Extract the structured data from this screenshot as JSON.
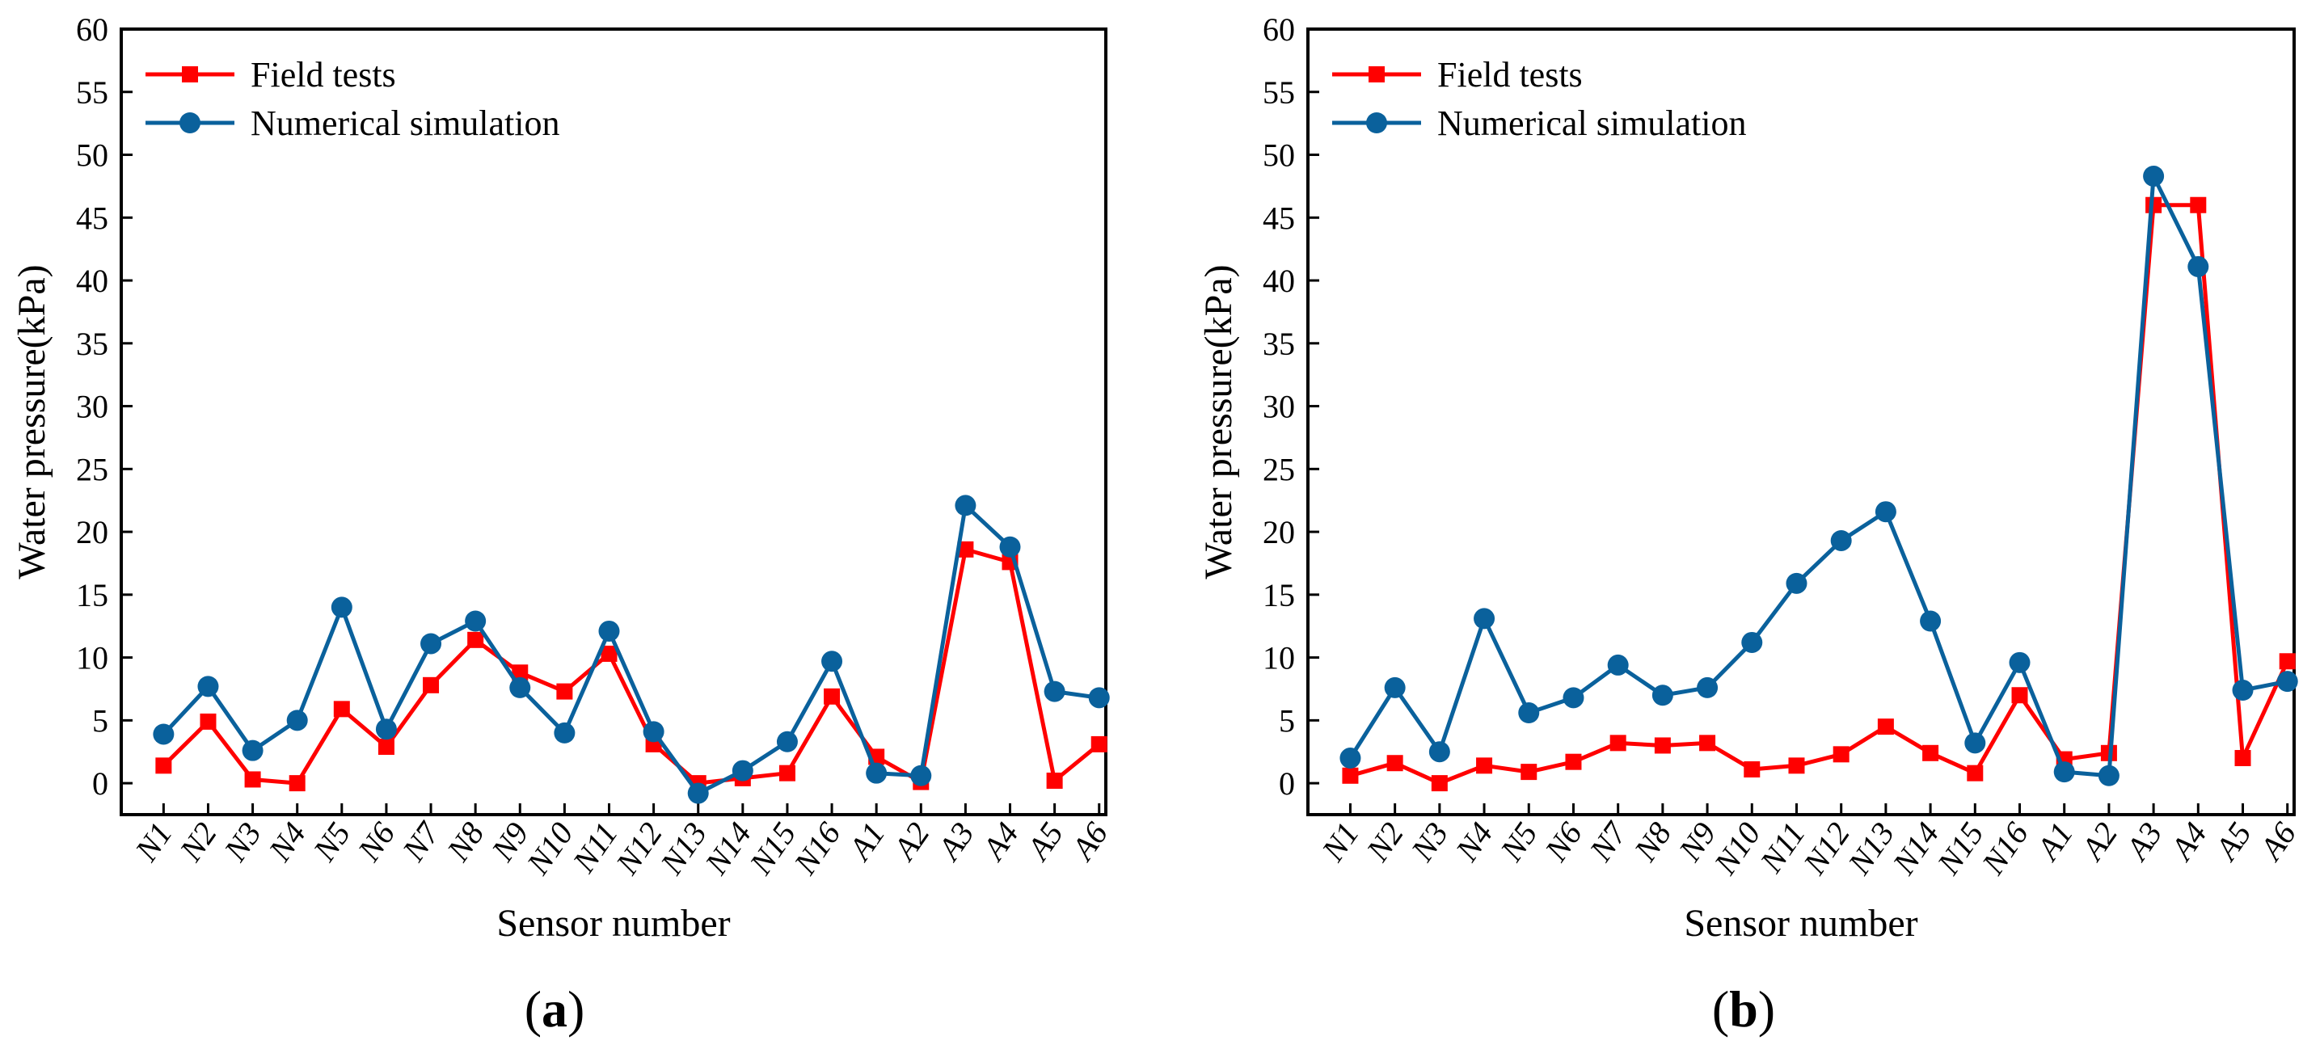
{
  "chart_data": [
    {
      "type": "line",
      "panel_label": "(a)",
      "panel_letter": "a",
      "xlabel": "Sensor number",
      "ylabel": "Water pressure(kPa)",
      "ylim": [
        -2.5,
        60
      ],
      "yticks": [
        0,
        5,
        10,
        15,
        20,
        25,
        30,
        35,
        40,
        45,
        50,
        55,
        60
      ],
      "categories": [
        "N1",
        "N2",
        "N3",
        "N4",
        "N5",
        "N6",
        "N7",
        "N8",
        "N9",
        "N10",
        "N11",
        "N12",
        "N13",
        "N14",
        "N15",
        "N16",
        "A1",
        "A2",
        "A3",
        "A4",
        "A5",
        "A6"
      ],
      "legend_position": "top-left",
      "series": [
        {
          "name": "Field tests",
          "color": "#ff0000",
          "marker": "square",
          "values": [
            1.4,
            4.9,
            0.3,
            0.0,
            5.9,
            2.9,
            7.8,
            11.4,
            8.8,
            7.3,
            10.3,
            3.1,
            0.0,
            0.4,
            0.8,
            6.9,
            2.1,
            0.1,
            18.6,
            17.6,
            0.2,
            3.1
          ]
        },
        {
          "name": "Numerical simulation",
          "color": "#0a619c",
          "marker": "circle",
          "values": [
            3.9,
            7.7,
            2.6,
            5.0,
            14.0,
            4.3,
            11.1,
            12.9,
            7.6,
            4.0,
            12.1,
            4.1,
            -0.8,
            1.0,
            3.3,
            9.7,
            0.8,
            0.6,
            22.1,
            18.8,
            7.3,
            6.8
          ]
        }
      ]
    },
    {
      "type": "line",
      "panel_label": "(b)",
      "panel_letter": "b",
      "xlabel": "Sensor number",
      "ylabel": "Water pressure(kPa)",
      "ylim": [
        -2.5,
        60
      ],
      "yticks": [
        0,
        5,
        10,
        15,
        20,
        25,
        30,
        35,
        40,
        45,
        50,
        55,
        60
      ],
      "categories": [
        "N1",
        "N2",
        "N3",
        "N4",
        "N5",
        "N6",
        "N7",
        "N8",
        "N9",
        "N10",
        "N11",
        "N12",
        "N13",
        "N14",
        "N15",
        "N16",
        "A1",
        "A2",
        "A3",
        "A4",
        "A5",
        "A6"
      ],
      "legend_position": "top-left",
      "series": [
        {
          "name": "Field tests",
          "color": "#ff0000",
          "marker": "square",
          "values": [
            0.6,
            1.6,
            0.0,
            1.4,
            0.9,
            1.7,
            3.2,
            3.0,
            3.2,
            1.1,
            1.4,
            2.3,
            4.5,
            2.4,
            0.8,
            7.0,
            1.9,
            2.4,
            46.0,
            46.0,
            2.0,
            9.7
          ]
        },
        {
          "name": "Numerical simulation",
          "color": "#0a619c",
          "marker": "circle",
          "values": [
            2.0,
            7.6,
            2.5,
            13.1,
            5.6,
            6.8,
            9.4,
            7.0,
            7.6,
            11.2,
            15.9,
            19.3,
            21.6,
            12.9,
            3.2,
            9.6,
            0.9,
            0.6,
            48.3,
            41.1,
            7.4,
            8.1
          ]
        }
      ]
    }
  ]
}
